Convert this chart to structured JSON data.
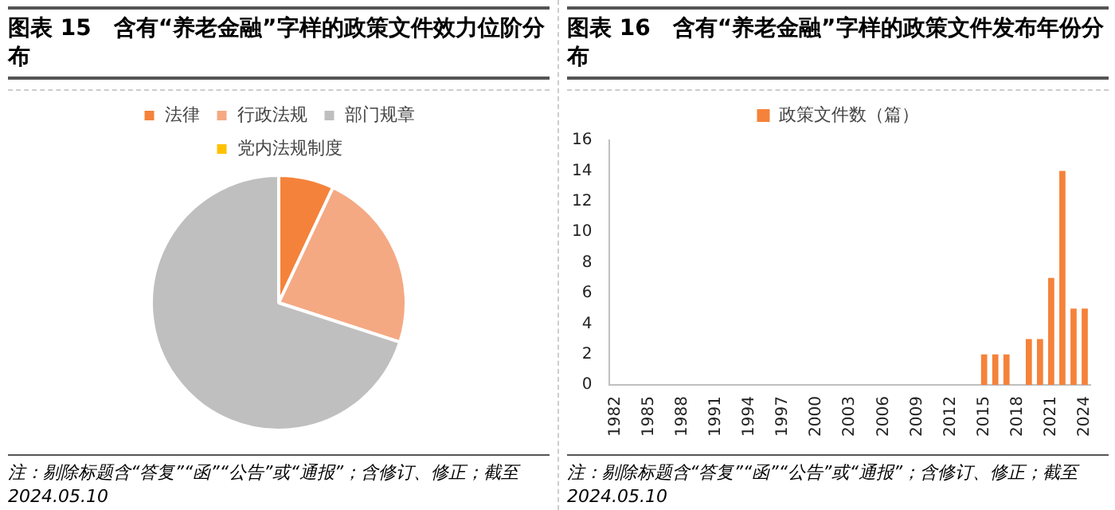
{
  "chart_data": [
    {
      "type": "pie",
      "title": "图表 15　含有“养老金融”字样的政策文件效力位阶分布",
      "categories": [
        "法律",
        "行政法规",
        "部门规章",
        "党内法规制度"
      ],
      "values": [
        7,
        23,
        70,
        0
      ],
      "colors": [
        "#f5823a",
        "#f4a983",
        "#bfbfbf",
        "#ffc000"
      ],
      "legend": "top",
      "annotations": [
        "注：剔除标题含“答复”“函”“公告”或“通报”；含修订、修正；截至 2024.05.10"
      ]
    },
    {
      "type": "bar",
      "title": "图表 16　含有“养老金融”字样的政策文件发布年份分布",
      "categories": [
        "1982",
        null,
        null,
        "1985",
        null,
        null,
        "1988",
        null,
        null,
        "1991",
        null,
        null,
        "1994",
        null,
        null,
        "1997",
        null,
        null,
        "2000",
        null,
        null,
        "2003",
        null,
        null,
        "2006",
        null,
        null,
        "2009",
        null,
        null,
        "2012",
        null,
        null,
        "2015",
        null,
        null,
        "2018",
        null,
        null,
        "2021",
        null,
        null,
        "2024"
      ],
      "series": [
        {
          "name": "政策文件数（篇）",
          "color": "#f5823a",
          "values": [
            0,
            0,
            0,
            0,
            0,
            0,
            0,
            0,
            0,
            0,
            0,
            0,
            0,
            0,
            0,
            0,
            0,
            0,
            0,
            0,
            0,
            0,
            0,
            0,
            0,
            0,
            0,
            0,
            0,
            0,
            0,
            0,
            0,
            2,
            2,
            2,
            0,
            3,
            3,
            7,
            14,
            5,
            5
          ]
        }
      ],
      "ylim": [
        0,
        16
      ],
      "yticks": [
        0,
        2,
        4,
        6,
        8,
        10,
        12,
        14,
        16
      ],
      "grid": false,
      "legend": "top",
      "annotations": [
        "注：剔除标题含“答复”“函”“公告”或“通报”；含修订、修正；截至 2024.05.10"
      ]
    }
  ]
}
